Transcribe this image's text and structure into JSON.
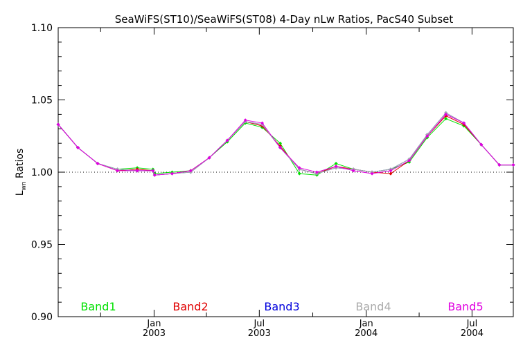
{
  "chart_data": {
    "type": "line",
    "title": "SeaWiFS(ST10)/SeaWiFS(ST08) 4-Day nLw Ratios, PacS40 Subset",
    "ylabel_main": "L",
    "ylabel_sub": "wn",
    "ylabel_rest": " Ratios",
    "ylim": [
      0.9,
      1.1
    ],
    "xlim": [
      "2002-07-20",
      "2004-09-10"
    ],
    "yticks": [
      "0.90",
      "0.95",
      "1.00",
      "1.05",
      "1.10"
    ],
    "xticks": [
      {
        "date": "2003-01-01",
        "month": "Jan",
        "year": "2003"
      },
      {
        "date": "2003-07-01",
        "month": "Jul",
        "year": "2003"
      },
      {
        "date": "2004-01-01",
        "month": "Jan",
        "year": "2004"
      },
      {
        "date": "2004-07-01",
        "month": "Jul",
        "year": "2004"
      }
    ],
    "reference_line": 1.0,
    "x": [
      "2002-07-20",
      "2002-08-23",
      "2002-09-26",
      "2002-10-30",
      "2002-12-03",
      "2002-12-30",
      "2003-01-02",
      "2003-02-01",
      "2003-03-05",
      "2003-04-06",
      "2003-05-07",
      "2003-06-07",
      "2003-07-06",
      "2003-08-06",
      "2003-09-08",
      "2003-10-08",
      "2003-11-10",
      "2003-12-10",
      "2004-01-11",
      "2004-02-12",
      "2004-03-15",
      "2004-04-15",
      "2004-05-17",
      "2004-06-17",
      "2004-07-17",
      "2004-08-17",
      "2004-09-10"
    ],
    "series": [
      {
        "name": "Band1",
        "color": "#00e000",
        "values": [
          1.033,
          1.017,
          1.006,
          1.002,
          1.003,
          1.002,
          0.999,
          1.0,
          1.001,
          1.01,
          1.021,
          1.034,
          1.031,
          1.02,
          0.999,
          0.998,
          1.006,
          1.002,
          1.0,
          1.002,
          1.007,
          1.024,
          1.037,
          1.032,
          1.019,
          1.005,
          1.005
        ]
      },
      {
        "name": "Band2",
        "color": "#e00000",
        "values": [
          1.033,
          1.017,
          1.006,
          1.001,
          1.002,
          1.001,
          0.998,
          0.999,
          1.001,
          1.01,
          1.022,
          1.035,
          1.032,
          1.018,
          1.002,
          0.999,
          1.004,
          1.002,
          1.0,
          0.999,
          1.008,
          1.025,
          1.039,
          1.033,
          1.019,
          1.005,
          1.005
        ]
      },
      {
        "name": "Band3",
        "color": "#0000dd",
        "values": [
          1.033,
          1.017,
          1.006,
          1.002,
          1.001,
          1.001,
          0.998,
          0.999,
          1.0,
          1.01,
          1.022,
          1.035,
          1.033,
          1.017,
          1.002,
          0.999,
          1.003,
          1.002,
          1.0,
          1.002,
          1.009,
          1.026,
          1.041,
          1.034,
          1.019,
          1.005,
          1.005
        ]
      },
      {
        "name": "Band4",
        "color": "#aaaaaa",
        "values": [
          1.033,
          1.017,
          1.006,
          1.002,
          1.001,
          1.001,
          0.998,
          0.999,
          1.0,
          1.01,
          1.022,
          1.035,
          1.033,
          1.017,
          1.002,
          0.999,
          1.003,
          1.002,
          1.0,
          1.002,
          1.009,
          1.026,
          1.041,
          1.034,
          1.019,
          1.005,
          1.005
        ]
      },
      {
        "name": "Band5",
        "color": "#e000e0",
        "values": [
          1.033,
          1.017,
          1.006,
          1.001,
          1.001,
          1.001,
          0.998,
          0.999,
          1.001,
          1.01,
          1.022,
          1.036,
          1.034,
          1.017,
          1.003,
          1.0,
          1.004,
          1.001,
          0.999,
          1.001,
          1.008,
          1.025,
          1.04,
          1.034,
          1.019,
          1.005,
          1.005
        ]
      }
    ]
  }
}
